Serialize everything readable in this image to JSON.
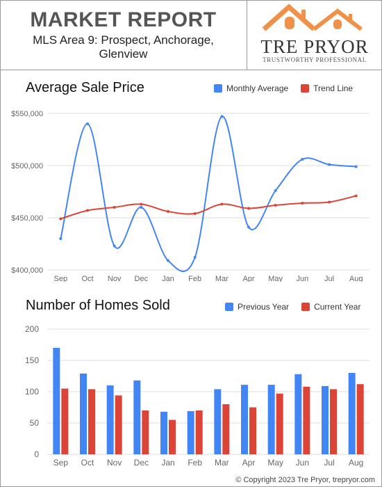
{
  "header": {
    "title": "MARKET REPORT",
    "subtitle": "MLS Area 9:  Prospect, Anchorage, Glenview"
  },
  "logo": {
    "name": "TRE PRYOR",
    "tagline": "TRUSTWORTHY PROFESSIONAL",
    "roof_color": "#f0914a"
  },
  "footer": {
    "copyright": "© Copyright 2023 Tre Pryor, trepryor.com"
  },
  "chart_data": [
    {
      "type": "line",
      "title": "Average Sale Price",
      "categories": [
        "Sep",
        "Oct",
        "Nov",
        "Dec",
        "Jan",
        "Feb",
        "Mar",
        "Apr",
        "May",
        "Jun",
        "Jul",
        "Aug"
      ],
      "ylim": [
        400000,
        550000
      ],
      "yticks": [
        400000,
        450000,
        500000,
        550000
      ],
      "ytick_labels": [
        "$400,000",
        "$450,000",
        "$500,000",
        "$550,000"
      ],
      "grid": true,
      "legend": "top-right",
      "series": [
        {
          "name": "Monthly Average",
          "color": "#4285f4",
          "values": [
            430000,
            540000,
            423000,
            460000,
            409000,
            412000,
            547000,
            441000,
            476000,
            506000,
            501000,
            499000
          ]
        },
        {
          "name": "Trend Line",
          "color": "#db4437",
          "values": [
            449000,
            457000,
            460000,
            463000,
            456000,
            454000,
            463000,
            459000,
            462000,
            464000,
            465000,
            471000
          ]
        }
      ]
    },
    {
      "type": "bar",
      "title": "Number of Homes Sold",
      "categories": [
        "Sep",
        "Oct",
        "Nov",
        "Dec",
        "Jan",
        "Feb",
        "Mar",
        "Apr",
        "May",
        "Jun",
        "Jul",
        "Aug"
      ],
      "ylim": [
        0,
        200
      ],
      "yticks": [
        0,
        50,
        100,
        150,
        200
      ],
      "ytick_labels": [
        "0",
        "50",
        "100",
        "150",
        "200"
      ],
      "grid": true,
      "legend": "top-right",
      "series": [
        {
          "name": "Previous Year",
          "color": "#4285f4",
          "values": [
            170,
            129,
            110,
            118,
            68,
            69,
            104,
            111,
            111,
            128,
            109,
            130
          ]
        },
        {
          "name": "Current Year",
          "color": "#db4437",
          "values": [
            105,
            104,
            94,
            70,
            55,
            70,
            80,
            75,
            97,
            108,
            104,
            112
          ]
        }
      ]
    }
  ]
}
